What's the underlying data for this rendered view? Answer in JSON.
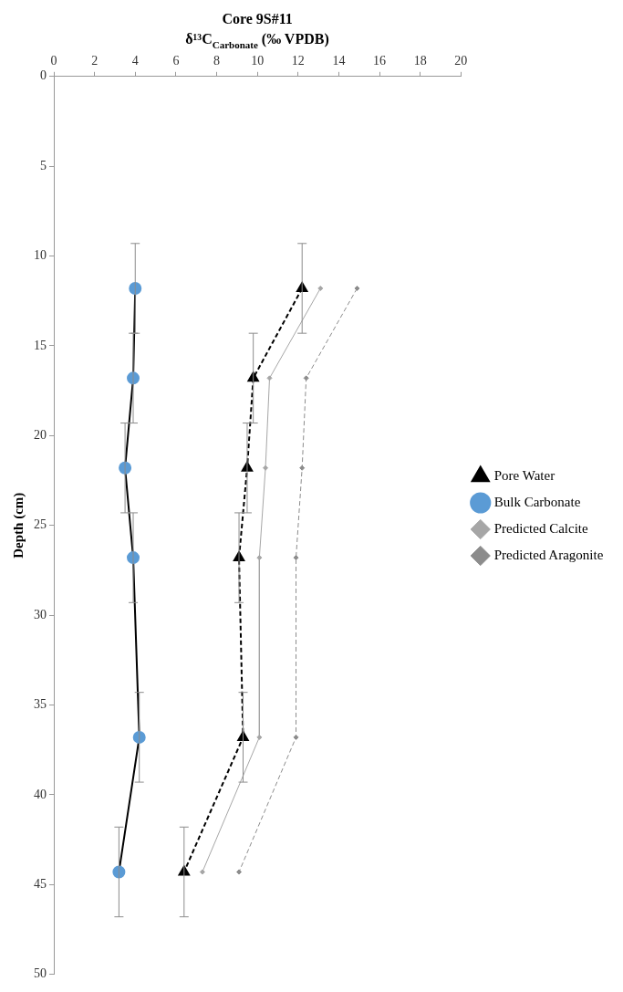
{
  "chart_data": {
    "type": "line",
    "title": "Core 9S#11",
    "xlabel": "δ¹³C$_{Carbonate}$ (‰ VPDB)",
    "ylabel": "Depth (cm)",
    "xlim": [
      0,
      20
    ],
    "xticks": [
      0,
      2,
      4,
      6,
      8,
      10,
      12,
      14,
      16,
      18,
      20
    ],
    "ylim": [
      50,
      0
    ],
    "yticks": [
      0,
      5,
      10,
      15,
      20,
      25,
      30,
      35,
      40,
      45,
      50
    ],
    "grid": false,
    "legend": "right",
    "series": [
      {
        "name": "Pore Water",
        "color": "#000000",
        "marker": "triangle",
        "line_style": "dashed",
        "x": [
          12.2,
          9.8,
          9.5,
          9.1,
          9.3,
          6.4
        ],
        "values": [
          11.8,
          16.8,
          21.8,
          26.8,
          36.8,
          44.3
        ],
        "errors": [
          2.5,
          2.5,
          2.5,
          2.5,
          2.5,
          2.5
        ]
      },
      {
        "name": "Bulk Carbonate",
        "color": "#000000",
        "colors": [
          "#5b9bd5",
          "#5b9bd5",
          "#5b9bd5",
          "#5b9bd5",
          "#5b9bd5",
          "#5b9bd5"
        ],
        "marker": "circle",
        "line_style": "solid",
        "x": [
          4.0,
          3.9,
          3.5,
          3.9,
          4.2,
          3.2
        ],
        "values": [
          11.8,
          16.8,
          21.8,
          26.8,
          36.8,
          44.3
        ],
        "errors": [
          2.5,
          2.5,
          2.5,
          2.5,
          2.5,
          2.5
        ]
      },
      {
        "name": "Predicted Calcite",
        "color": "#a6a6a6",
        "marker": "diamond",
        "line_style": "solid",
        "x": [
          13.1,
          10.6,
          10.4,
          10.1,
          10.1,
          7.3
        ],
        "values": [
          11.8,
          16.8,
          21.8,
          26.8,
          36.8,
          44.3
        ]
      },
      {
        "name": "Predicted Aragonite",
        "color": "#8c8c8c",
        "marker": "diamond",
        "line_style": "dashed",
        "x": [
          14.9,
          12.4,
          12.2,
          11.9,
          11.9,
          9.1
        ],
        "values": [
          11.8,
          16.8,
          21.8,
          26.8,
          36.8,
          44.3
        ]
      }
    ]
  }
}
